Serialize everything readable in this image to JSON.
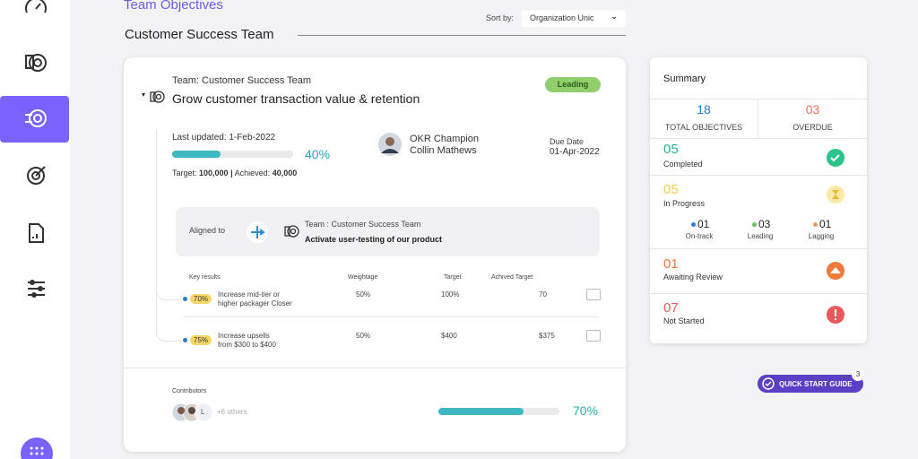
{
  "header": {
    "title": "Team Objectives",
    "sort_label": "Sort by:",
    "sort_value": "Organization Unic",
    "team": "Customer Success Team"
  },
  "objective": {
    "team": "Team: Customer Success Team",
    "title": "Grow customer transaction value & retention",
    "status": "Leading",
    "last_updated": "Last updated: 1-Feb-2022",
    "progress": {
      "value": 40,
      "label": "40%"
    },
    "target_label": "Target:",
    "target": "100,000",
    "separator": "|",
    "achieved_label": "Achieved:",
    "achieved": "40,000",
    "champion_role": "OKR Champion",
    "champion_name": "Collin Mathews",
    "due_label": "Due Date",
    "due_date": "01-Apr-2022",
    "aligned": {
      "label": "Aligned to",
      "team": "Team : Customer Success Team",
      "objective": "Activate user-testing of our product"
    },
    "key_results": {
      "columns": [
        "Key results",
        "Weightage",
        "Target",
        "Achived Target"
      ],
      "rows": [
        {
          "progress": "70%",
          "name": "Increase mid-tier or\nhigher packager Closer",
          "weightage": "50%",
          "target": "100%",
          "achieved": "70"
        },
        {
          "progress": "75%",
          "name": "Increase upsells\nfrom $300 to $400",
          "weightage": "50%",
          "target": "$400",
          "achieved": "$375"
        }
      ]
    },
    "contributors": {
      "label": "Contributors",
      "initial": "L",
      "others": "+6 others",
      "progress": {
        "value": 70,
        "label": "70%"
      }
    }
  },
  "summary": {
    "title": "Summary",
    "total": {
      "value": "18",
      "label": "TOTAL OBJECTIVES"
    },
    "overdue": {
      "value": "03",
      "label": "OVERDUE"
    },
    "completed": {
      "value": "05",
      "label": "Completed"
    },
    "in_progress": {
      "value": "05",
      "label": "In Progress",
      "breakdown": [
        {
          "value": "01",
          "label": "On-track"
        },
        {
          "value": "03",
          "label": "Leading"
        },
        {
          "value": "01",
          "label": "Lagging"
        }
      ]
    },
    "awaiting": {
      "value": "01",
      "label": "Awaiting Review"
    },
    "not_started": {
      "value": "07",
      "label": "Not Started"
    }
  },
  "quick_start": {
    "label": "QUICK START GUIDE",
    "badge": "3"
  }
}
